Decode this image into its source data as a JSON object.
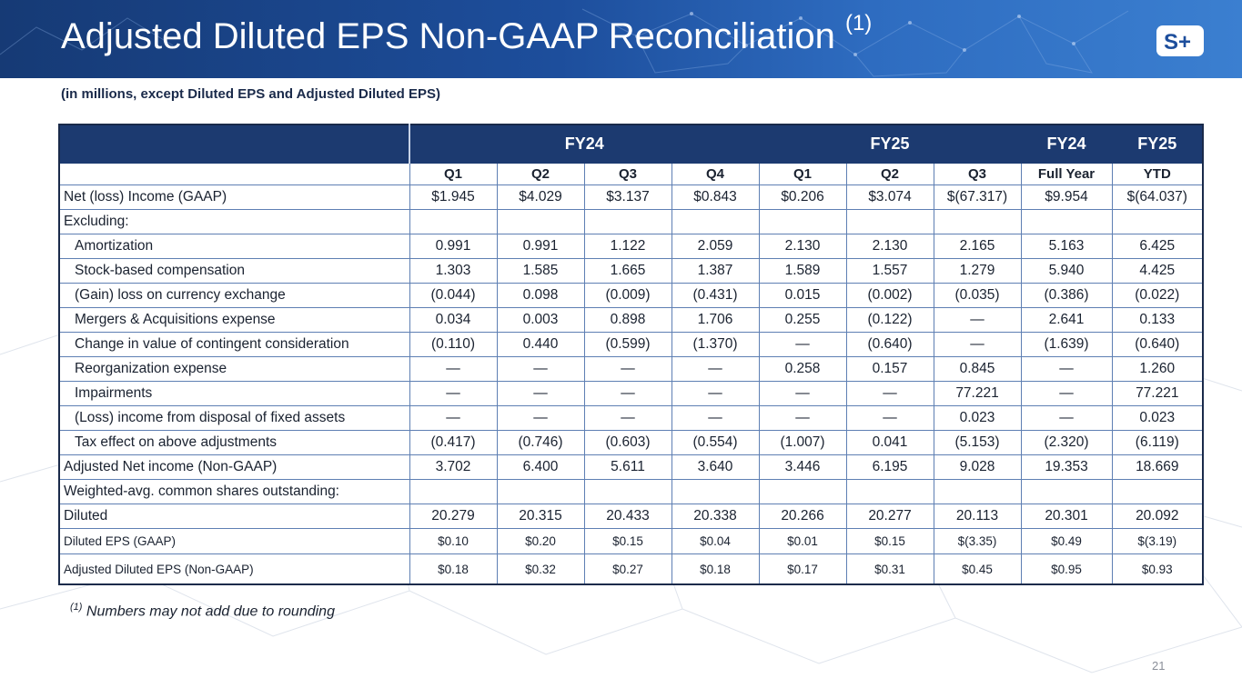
{
  "slide": {
    "title": "Adjusted Diluted EPS Non-GAAP Reconciliation",
    "title_sup": "(1)",
    "subtitle": "(in millions, except Diluted EPS and Adjusted Diluted EPS)",
    "footnote_marker": "(1)",
    "footnote": "Numbers may not add due to rounding",
    "page_number": "21",
    "logo_text": "S+"
  },
  "colors": {
    "banner": "#1d4e9c",
    "header_fill": "#1c3a70",
    "grid": "#5e7fb3"
  },
  "table": {
    "groups": [
      "FY24",
      "FY25",
      "FY24",
      "FY25"
    ],
    "columns": [
      "Q1",
      "Q2",
      "Q3",
      "Q4",
      "Q1",
      "Q2",
      "Q3",
      "Full Year",
      "YTD"
    ],
    "rows": [
      {
        "label": "Net (loss) Income (GAAP)",
        "values": [
          "$1.945",
          "$4.029",
          "$3.137",
          "$0.843",
          "$0.206",
          "$3.074",
          "$(67.317)",
          "$9.954",
          "$(64.037)"
        ]
      },
      {
        "label": "Excluding:",
        "values": [
          "",
          "",
          "",
          "",
          "",
          "",
          "",
          "",
          ""
        ]
      },
      {
        "label": "Amortization",
        "values": [
          "0.991",
          "0.991",
          "1.122",
          "2.059",
          "2.130",
          "2.130",
          "2.165",
          "5.163",
          "6.425"
        ]
      },
      {
        "label": "Stock-based compensation",
        "values": [
          "1.303",
          "1.585",
          "1.665",
          "1.387",
          "1.589",
          "1.557",
          "1.279",
          "5.940",
          "4.425"
        ]
      },
      {
        "label": "(Gain) loss on currency exchange",
        "values": [
          "(0.044)",
          "0.098",
          "(0.009)",
          "(0.431)",
          "0.015",
          "(0.002)",
          "(0.035)",
          "(0.386)",
          "(0.022)"
        ]
      },
      {
        "label": "Mergers & Acquisitions expense",
        "values": [
          "0.034",
          "0.003",
          "0.898",
          "1.706",
          "0.255",
          "(0.122)",
          "—",
          "2.641",
          "0.133"
        ]
      },
      {
        "label": "Change in value of contingent consideration",
        "values": [
          "(0.110)",
          "0.440",
          "(0.599)",
          "(1.370)",
          "—",
          "(0.640)",
          "—",
          "(1.639)",
          "(0.640)"
        ]
      },
      {
        "label": "Reorganization expense",
        "values": [
          "—",
          "—",
          "—",
          "—",
          "0.258",
          "0.157",
          "0.845",
          "—",
          "1.260"
        ]
      },
      {
        "label": "Impairments",
        "values": [
          "—",
          "—",
          "—",
          "—",
          "—",
          "—",
          "77.221",
          "—",
          "77.221"
        ]
      },
      {
        "label": "(Loss) income from disposal of fixed assets",
        "values": [
          "—",
          "—",
          "—",
          "—",
          "—",
          "—",
          "0.023",
          "—",
          "0.023"
        ]
      },
      {
        "label": "Tax effect on above adjustments",
        "values": [
          "(0.417)",
          "(0.746)",
          "(0.603)",
          "(0.554)",
          "(1.007)",
          "0.041",
          "(5.153)",
          "(2.320)",
          "(6.119)"
        ]
      },
      {
        "label": "Adjusted Net income (Non-GAAP)",
        "values": [
          "3.702",
          "6.400",
          "5.611",
          "3.640",
          "3.446",
          "6.195",
          "9.028",
          "19.353",
          "18.669"
        ]
      },
      {
        "label": "Weighted-avg. common shares outstanding:",
        "values": [
          "",
          "",
          "",
          "",
          "",
          "",
          "",
          "",
          ""
        ]
      },
      {
        "label": "Diluted",
        "values": [
          "20.279",
          "20.315",
          "20.433",
          "20.338",
          "20.266",
          "20.277",
          "20.113",
          "20.301",
          "20.092"
        ]
      },
      {
        "label": "Diluted EPS (GAAP)",
        "values": [
          "$0.10",
          "$0.20",
          "$0.15",
          "$0.04",
          "$0.01",
          "$0.15",
          "$(3.35)",
          "$0.49",
          "$(3.19)"
        ]
      },
      {
        "label": "Adjusted Diluted EPS (Non-GAAP)",
        "values": [
          "$0.18",
          "$0.32",
          "$0.27",
          "$0.18",
          "$0.17",
          "$0.31",
          "$0.45",
          "$0.95",
          "$0.93"
        ]
      }
    ]
  }
}
